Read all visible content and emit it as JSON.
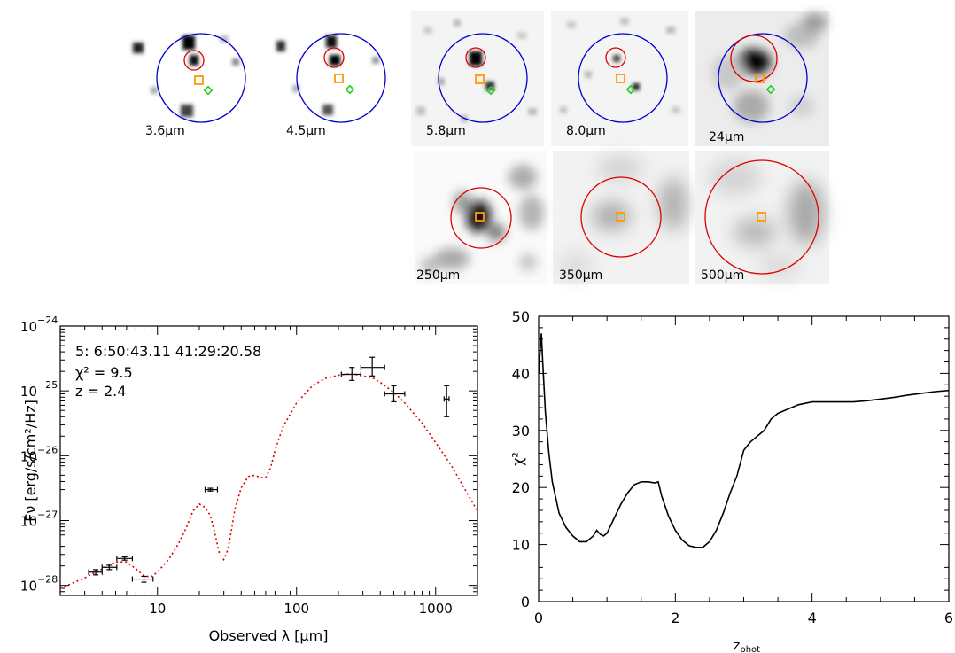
{
  "source_label": "5",
  "stamps": [
    {
      "band": "3.6",
      "unit": "μm"
    },
    {
      "band": "4.5",
      "unit": "μm"
    },
    {
      "band": "5.8",
      "unit": "μm"
    },
    {
      "band": "8.0",
      "unit": "μm"
    },
    {
      "band": "24",
      "unit": "μm"
    },
    {
      "band": "250",
      "unit": "μm"
    },
    {
      "band": "350",
      "unit": "μm"
    },
    {
      "band": "500",
      "unit": "μm"
    }
  ],
  "colors": {
    "aperture_blue": "#0000cc",
    "aperture_red": "#dd0000",
    "orange_marker": "#ff9900",
    "green_marker": "#22cc22",
    "fit_red": "#dd0000"
  },
  "chart_data": [
    {
      "type": "scatter",
      "title": "",
      "xlabel": "Observed λ [μm]",
      "ylabel": "Fν [erg/s/cm²/Hz]",
      "xscale": "log",
      "yscale": "log",
      "xlim": [
        2,
        2000
      ],
      "ylim": [
        7e-29,
        1e-24
      ],
      "x_ticks": [
        10,
        100,
        1000
      ],
      "x_tick_labels": [
        "10",
        "100",
        "1000"
      ],
      "y_ticks": [
        1e-28,
        1e-27,
        1e-26,
        1e-25,
        1e-24
      ],
      "y_tick_labels": [
        {
          "base": "10",
          "exp": "−28"
        },
        {
          "base": "10",
          "exp": "−27"
        },
        {
          "base": "10",
          "exp": "−26"
        },
        {
          "base": "10",
          "exp": "−25"
        },
        {
          "base": "10",
          "exp": "−24"
        }
      ],
      "annotations": {
        "id_line": "5: 6:50:43.11 41:29:20.58",
        "chi2_line": "χ² = 9.5",
        "z_line": "z = 2.4"
      },
      "points": [
        {
          "x": 3.6,
          "y": 1.6e-28,
          "xerr": [
            3.2,
            4.0
          ],
          "yerr": [
            1.45e-28,
            1.75e-28
          ]
        },
        {
          "x": 4.5,
          "y": 1.9e-28,
          "xerr": [
            4.0,
            5.1
          ],
          "yerr": [
            1.75e-28,
            2.05e-28
          ]
        },
        {
          "x": 5.8,
          "y": 2.6e-28,
          "xerr": [
            5.1,
            6.6
          ],
          "yerr": [
            2.45e-28,
            2.75e-28
          ]
        },
        {
          "x": 8.0,
          "y": 1.25e-28,
          "xerr": [
            6.6,
            9.3
          ],
          "yerr": [
            1.12e-28,
            1.38e-28
          ]
        },
        {
          "x": 24,
          "y": 3e-27,
          "xerr": [
            22,
            27
          ],
          "yerr": [
            2.85e-27,
            3.15e-27
          ]
        },
        {
          "x": 250,
          "y": 1.8e-25,
          "xerr": [
            210,
            290
          ],
          "yerr": [
            1.45e-25,
            2.3e-25
          ]
        },
        {
          "x": 350,
          "y": 2.3e-25,
          "xerr": [
            290,
            430
          ],
          "yerr": [
            1.7e-25,
            3.3e-25
          ]
        },
        {
          "x": 500,
          "y": 9e-26,
          "xerr": [
            430,
            600
          ],
          "yerr": [
            6.8e-26,
            1.2e-25
          ]
        },
        {
          "x": 1200,
          "y": 7.5e-26,
          "xerr": [
            1150,
            1250
          ],
          "yerr": [
            4e-26,
            1.2e-25
          ]
        }
      ],
      "fit_curve": {
        "style": "dotted",
        "x": [
          2,
          3,
          4,
          5,
          6,
          7,
          8,
          9,
          10,
          12,
          14,
          16,
          18,
          20,
          22,
          24,
          26,
          28,
          30,
          32,
          34,
          36,
          40,
          45,
          50,
          55,
          60,
          65,
          70,
          80,
          100,
          130,
          160,
          200,
          250,
          300,
          350,
          400,
          500,
          600,
          800,
          1000,
          1300,
          1600,
          2000
        ],
        "y": [
          9e-29,
          1.3e-28,
          1.8e-28,
          2.3e-28,
          2.3e-28,
          1.8e-28,
          1.4e-28,
          1.35e-28,
          1.6e-28,
          2.5e-28,
          4.2e-28,
          7.5e-28,
          1.4e-27,
          1.8e-27,
          1.6e-27,
          1.2e-27,
          6e-28,
          3e-28,
          2.5e-28,
          3.5e-28,
          7e-28,
          1.5e-27,
          3.2e-27,
          4.8e-27,
          5e-27,
          4.6e-27,
          4.6e-27,
          6.5e-27,
          1.2e-26,
          2.8e-26,
          6.5e-26,
          1.2e-25,
          1.55e-25,
          1.75e-25,
          1.85e-25,
          1.7e-25,
          1.6e-25,
          1.35e-25,
          9.5e-26,
          6.5e-26,
          3.2e-26,
          1.6e-26,
          7e-27,
          3.2e-27,
          1.4e-27
        ]
      }
    },
    {
      "type": "line",
      "title": "",
      "xlabel": "z",
      "xlabel_sub": "phot",
      "ylabel": "χ²",
      "xlim": [
        0,
        6
      ],
      "ylim": [
        0,
        50
      ],
      "x_ticks": [
        0,
        2,
        4,
        6
      ],
      "y_ticks": [
        0,
        10,
        20,
        30,
        40,
        50
      ],
      "x": [
        0.0,
        0.04,
        0.06,
        0.1,
        0.15,
        0.2,
        0.3,
        0.4,
        0.5,
        0.6,
        0.7,
        0.8,
        0.85,
        0.9,
        0.95,
        1.0,
        1.1,
        1.2,
        1.3,
        1.4,
        1.5,
        1.6,
        1.7,
        1.75,
        1.8,
        1.9,
        2.0,
        2.1,
        2.2,
        2.3,
        2.4,
        2.5,
        2.6,
        2.7,
        2.8,
        2.9,
        3.0,
        3.1,
        3.2,
        3.3,
        3.4,
        3.5,
        3.6,
        3.7,
        3.8,
        4.0,
        4.2,
        4.4,
        4.6,
        4.8,
        5.0,
        5.2,
        5.4,
        5.6,
        5.8,
        6.0
      ],
      "y": [
        40,
        47,
        42,
        33,
        26,
        21,
        15.5,
        13,
        11.5,
        10.5,
        10.5,
        11.5,
        12.5,
        11.8,
        11.5,
        12,
        14.5,
        17,
        19,
        20.5,
        21,
        21,
        20.8,
        21,
        18.5,
        15,
        12.5,
        10.8,
        9.8,
        9.5,
        9.5,
        10.5,
        12.5,
        15.5,
        19,
        22,
        26.5,
        28,
        29,
        30,
        32,
        33,
        33.5,
        34,
        34.5,
        35,
        35,
        35,
        35,
        35.2,
        35.5,
        35.8,
        36.2,
        36.5,
        36.8,
        37
      ]
    }
  ]
}
